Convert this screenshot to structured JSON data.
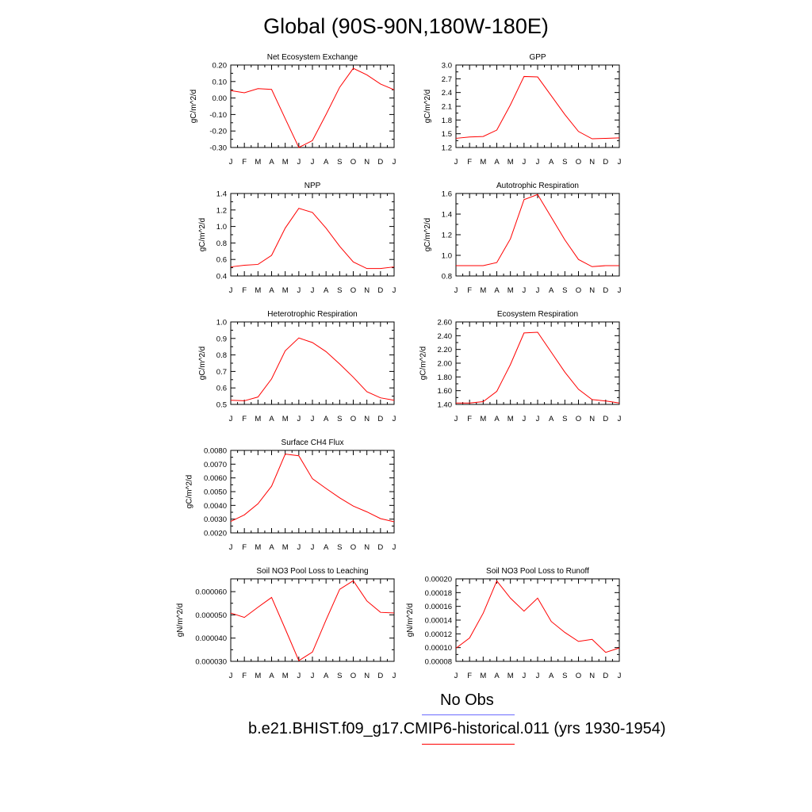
{
  "title": "Global (90S-90N,180W-180E)",
  "colors": {
    "model": "#ff0000",
    "obs": "#6b6bff",
    "axis": "#000000"
  },
  "legend": {
    "obs_label": "No Obs",
    "model_label": "b.e21.BHIST.f09_g17.CMIP6-historical.011 (yrs 1930-1954)"
  },
  "chart_data": [
    {
      "type": "line",
      "title": "Net Ecosystem Exchange",
      "ylabel": "gC/m^2/d",
      "categories": [
        "J",
        "F",
        "M",
        "A",
        "M",
        "J",
        "J",
        "A",
        "S",
        "O",
        "N",
        "D",
        "J"
      ],
      "ylim": [
        -0.3,
        0.2
      ],
      "yticks": [
        "0.20",
        "0.10",
        "0.00",
        "-0.10",
        "-0.20",
        "-0.30"
      ],
      "ytick_values": [
        0.2,
        0.1,
        0.0,
        -0.1,
        -0.2,
        -0.3
      ],
      "series": [
        {
          "values": [
            0.045,
            0.032,
            0.057,
            0.052,
            -0.125,
            -0.3,
            -0.258,
            -0.1,
            0.065,
            0.18,
            0.14,
            0.085,
            0.05
          ]
        }
      ]
    },
    {
      "type": "line",
      "title": "GPP",
      "ylabel": "gC/m^2/d",
      "categories": [
        "J",
        "F",
        "M",
        "A",
        "M",
        "J",
        "J",
        "A",
        "S",
        "O",
        "N",
        "D",
        "J"
      ],
      "ylim": [
        1.2,
        3.0
      ],
      "yticks": [
        "3.0",
        "2.7",
        "2.4",
        "2.1",
        "1.8",
        "1.5",
        "1.2"
      ],
      "ytick_values": [
        3.0,
        2.7,
        2.4,
        2.1,
        1.8,
        1.5,
        1.2
      ],
      "series": [
        {
          "values": [
            1.4,
            1.43,
            1.44,
            1.58,
            2.13,
            2.75,
            2.74,
            2.33,
            1.92,
            1.55,
            1.39,
            1.4,
            1.41
          ]
        }
      ]
    },
    {
      "type": "line",
      "title": "NPP",
      "ylabel": "gC/m^2/d",
      "categories": [
        "J",
        "F",
        "M",
        "A",
        "M",
        "J",
        "J",
        "A",
        "S",
        "O",
        "N",
        "D",
        "J"
      ],
      "ylim": [
        0.4,
        1.4
      ],
      "yticks": [
        "1.4",
        "1.2",
        "1.0",
        "0.8",
        "0.6",
        "0.4"
      ],
      "ytick_values": [
        1.4,
        1.2,
        1.0,
        0.8,
        0.6,
        0.4
      ],
      "series": [
        {
          "values": [
            0.51,
            0.53,
            0.54,
            0.65,
            0.98,
            1.22,
            1.17,
            0.98,
            0.76,
            0.57,
            0.49,
            0.49,
            0.51
          ]
        }
      ]
    },
    {
      "type": "line",
      "title": "Autotrophic Respiration",
      "ylabel": "gC/m^2/d",
      "categories": [
        "J",
        "F",
        "M",
        "A",
        "M",
        "J",
        "J",
        "A",
        "S",
        "O",
        "N",
        "D",
        "J"
      ],
      "ylim": [
        0.8,
        1.6
      ],
      "yticks": [
        "1.6",
        "1.4",
        "1.2",
        "1.0",
        "0.8"
      ],
      "ytick_values": [
        1.6,
        1.4,
        1.2,
        1.0,
        0.8
      ],
      "series": [
        {
          "values": [
            0.9,
            0.9,
            0.9,
            0.93,
            1.16,
            1.54,
            1.59,
            1.37,
            1.15,
            0.96,
            0.89,
            0.9,
            0.9
          ]
        }
      ]
    },
    {
      "type": "line",
      "title": "Heterotrophic Respiration",
      "ylabel": "gC/m^2/d",
      "categories": [
        "J",
        "F",
        "M",
        "A",
        "M",
        "J",
        "J",
        "A",
        "S",
        "O",
        "N",
        "D",
        "J"
      ],
      "ylim": [
        0.5,
        1.0
      ],
      "yticks": [
        "1.0",
        "0.9",
        "0.8",
        "0.7",
        "0.6",
        "0.5"
      ],
      "ytick_values": [
        1.0,
        0.9,
        0.8,
        0.7,
        0.6,
        0.5
      ],
      "series": [
        {
          "values": [
            0.525,
            0.522,
            0.545,
            0.655,
            0.825,
            0.903,
            0.875,
            0.82,
            0.745,
            0.665,
            0.577,
            0.54,
            0.525
          ]
        }
      ]
    },
    {
      "type": "line",
      "title": "Ecosystem Respiration",
      "ylabel": "gC/m^2/d",
      "categories": [
        "J",
        "F",
        "M",
        "A",
        "M",
        "J",
        "J",
        "A",
        "S",
        "O",
        "N",
        "D",
        "J"
      ],
      "ylim": [
        1.4,
        2.6
      ],
      "yticks": [
        "2.60",
        "2.40",
        "2.20",
        "2.00",
        "1.80",
        "1.60",
        "1.40"
      ],
      "ytick_values": [
        2.6,
        2.4,
        2.2,
        2.0,
        1.8,
        1.6,
        1.4
      ],
      "series": [
        {
          "values": [
            1.42,
            1.42,
            1.44,
            1.59,
            1.98,
            2.44,
            2.45,
            2.16,
            1.87,
            1.62,
            1.47,
            1.45,
            1.42
          ]
        }
      ]
    },
    {
      "type": "line",
      "title": "Surface CH4 Flux",
      "ylabel": "gC/m^2/d",
      "categories": [
        "J",
        "F",
        "M",
        "A",
        "M",
        "J",
        "J",
        "A",
        "S",
        "O",
        "N",
        "D",
        "J"
      ],
      "ylim": [
        0.002,
        0.008
      ],
      "yticks": [
        "0.0080",
        "0.0070",
        "0.0060",
        "0.0050",
        "0.0040",
        "0.0030",
        "0.0020"
      ],
      "ytick_values": [
        0.008,
        0.007,
        0.006,
        0.005,
        0.004,
        0.003,
        0.002
      ],
      "series": [
        {
          "values": [
            0.00283,
            0.00331,
            0.00412,
            0.0054,
            0.00773,
            0.00761,
            0.00594,
            0.00523,
            0.00455,
            0.00395,
            0.00353,
            0.00304,
            0.00281
          ]
        }
      ]
    },
    {
      "type": "line",
      "title": "Soil NO3 Pool Loss to Leaching",
      "ylabel": "gN/m^2/d",
      "categories": [
        "J",
        "F",
        "M",
        "A",
        "M",
        "J",
        "J",
        "A",
        "S",
        "O",
        "N",
        "D",
        "J"
      ],
      "ylim": [
        3e-05,
        6.55e-05
      ],
      "yticks": [
        "0.000060",
        "0.000050",
        "0.000040",
        "0.000030"
      ],
      "ytick_values": [
        6e-05,
        5e-05,
        4e-05,
        3e-05
      ],
      "series": [
        {
          "values": [
            5.08e-05,
            4.89e-05,
            5.33e-05,
            5.75e-05,
            4.4e-05,
            3.03e-05,
            3.4e-05,
            4.78e-05,
            6.1e-05,
            6.47e-05,
            5.6e-05,
            5.11e-05,
            5.08e-05
          ]
        }
      ]
    },
    {
      "type": "line",
      "title": "Soil NO3 Pool Loss to Runoff",
      "ylabel": "gN/m^2/d",
      "categories": [
        "J",
        "F",
        "M",
        "A",
        "M",
        "J",
        "J",
        "A",
        "S",
        "O",
        "N",
        "D",
        "J"
      ],
      "ylim": [
        8e-05,
        0.0002
      ],
      "yticks": [
        "0.00020",
        "0.00018",
        "0.00016",
        "0.00014",
        "0.00012",
        "0.00010",
        "0.00008"
      ],
      "ytick_values": [
        0.0002,
        0.00018,
        0.00016,
        0.00014,
        0.00012,
        0.0001,
        8e-05
      ],
      "series": [
        {
          "values": [
            9.9e-05,
            0.000114,
            0.00015,
            0.000197,
            0.000172,
            0.000153,
            0.000172,
            0.000138,
            0.000122,
            0.000109,
            0.000112,
            9.3e-05,
            9.95e-05
          ]
        }
      ]
    }
  ]
}
